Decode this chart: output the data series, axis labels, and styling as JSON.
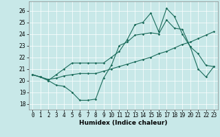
{
  "xlabel": "Humidex (Indice chaleur)",
  "background_color": "#c8e8e8",
  "grid_color": "#b0d4d4",
  "line_color": "#1a6b5a",
  "x_values": [
    0,
    1,
    2,
    3,
    4,
    5,
    6,
    7,
    8,
    9,
    10,
    11,
    12,
    13,
    14,
    15,
    16,
    17,
    18,
    19,
    20,
    21,
    22,
    23
  ],
  "series1": [
    20.5,
    20.3,
    20.0,
    19.6,
    19.5,
    19.0,
    18.3,
    18.3,
    18.4,
    20.2,
    21.3,
    23.0,
    23.3,
    23.9,
    24.0,
    24.1,
    24.0,
    25.2,
    24.5,
    24.4,
    22.9,
    22.3,
    21.3,
    21.2
  ],
  "series2": [
    20.5,
    20.3,
    20.1,
    20.2,
    20.4,
    20.5,
    20.6,
    20.6,
    20.6,
    20.8,
    21.0,
    21.2,
    21.4,
    21.6,
    21.8,
    22.0,
    22.3,
    22.5,
    22.8,
    23.1,
    23.3,
    23.6,
    23.9,
    24.2
  ],
  "series3": [
    20.5,
    20.3,
    20.0,
    20.5,
    21.0,
    21.5,
    21.5,
    21.5,
    21.5,
    21.5,
    22.0,
    22.5,
    23.5,
    24.8,
    25.0,
    25.8,
    24.2,
    26.2,
    25.5,
    24.0,
    22.9,
    21.0,
    20.3,
    21.2
  ],
  "ylim": [
    17.5,
    26.8
  ],
  "xlim": [
    -0.5,
    23.5
  ],
  "yticks": [
    18,
    19,
    20,
    21,
    22,
    23,
    24,
    25,
    26
  ],
  "xticks": [
    0,
    1,
    2,
    3,
    4,
    5,
    6,
    7,
    8,
    9,
    10,
    11,
    12,
    13,
    14,
    15,
    16,
    17,
    18,
    19,
    20,
    21,
    22,
    23
  ],
  "xtick_labels": [
    "0",
    "1",
    "2",
    "3",
    "4",
    "5",
    "6",
    "7",
    "8",
    "9",
    "10",
    "11",
    "12",
    "13",
    "14",
    "15",
    "16",
    "17",
    "18",
    "19",
    "20",
    "21",
    "22",
    "23"
  ],
  "tick_fontsize": 5.5,
  "xlabel_fontsize": 6.5,
  "marker": "D",
  "markersize": 1.8,
  "linewidth": 0.8
}
